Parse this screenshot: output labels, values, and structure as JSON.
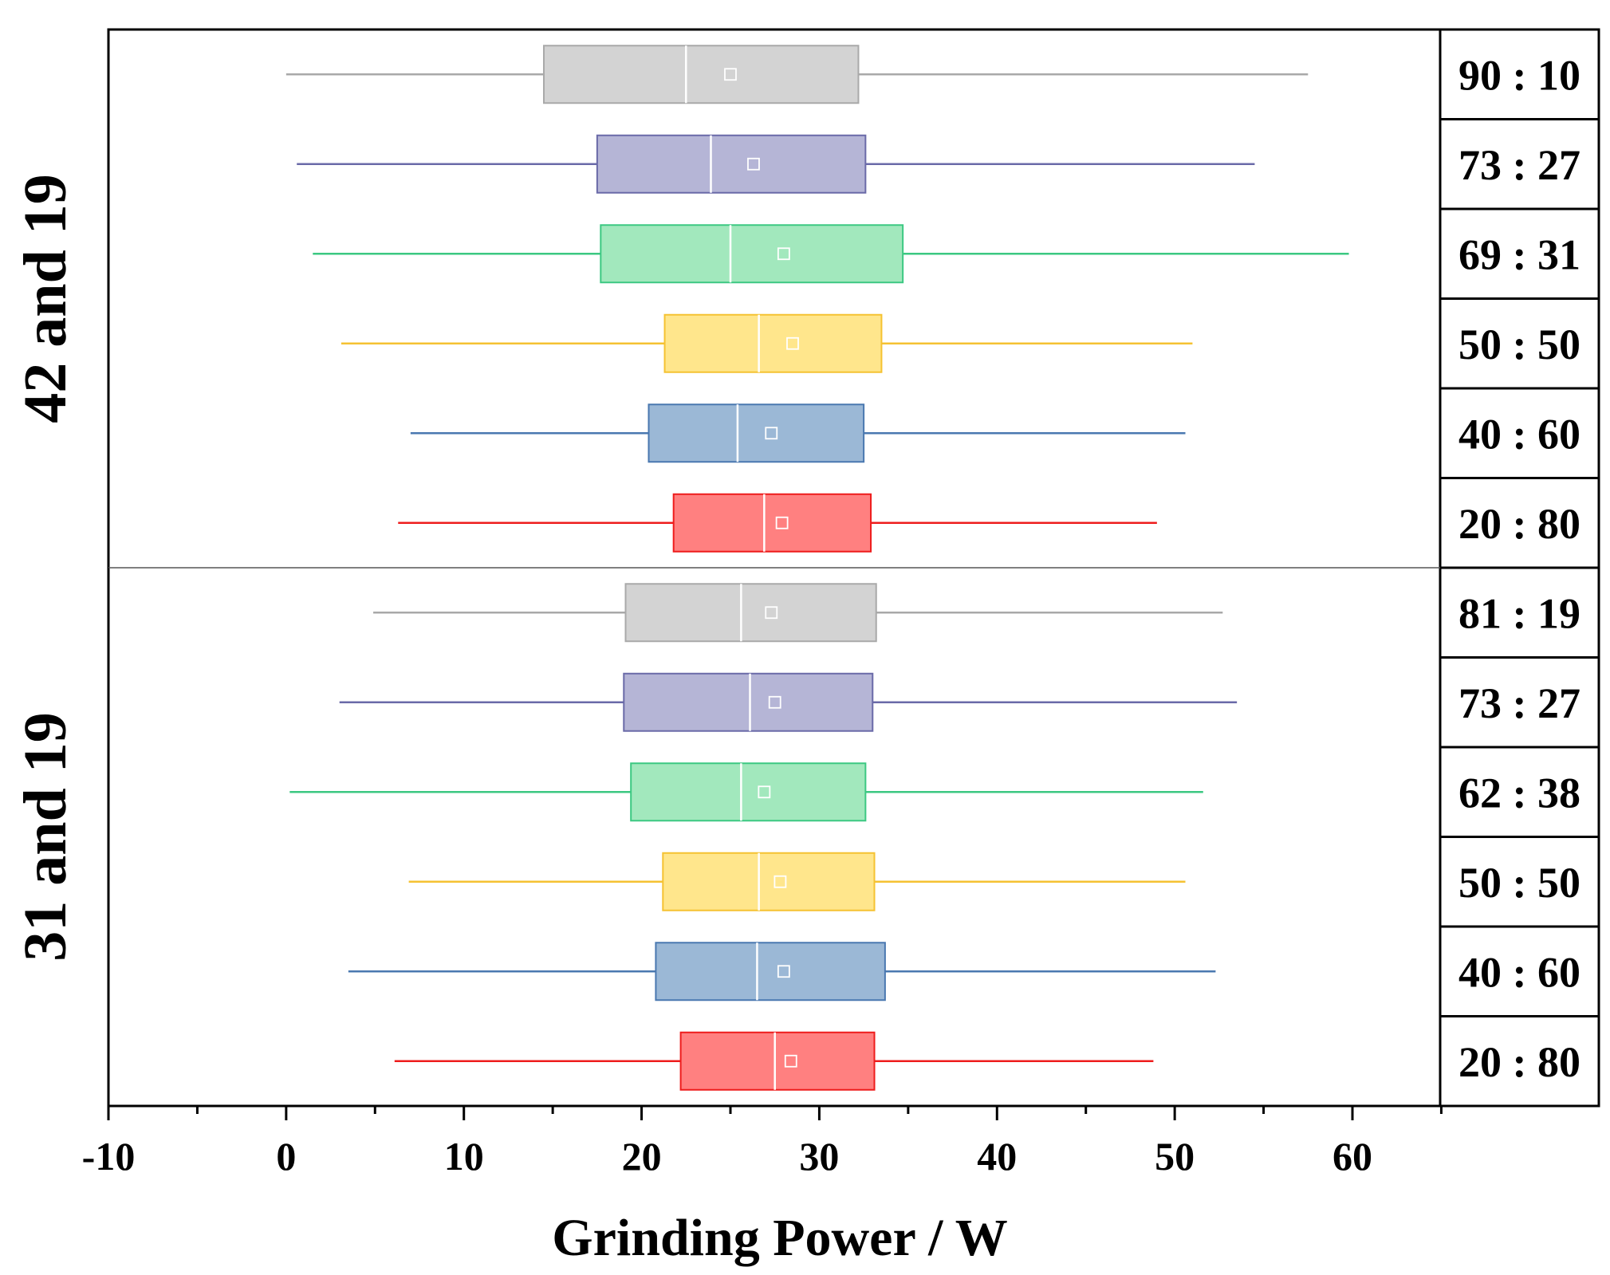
{
  "chart_data": {
    "type": "boxplot",
    "orientation": "horizontal",
    "xlabel": "Grinding Power / W",
    "xlim": [
      -10,
      65
    ],
    "xticks": [
      -10,
      0,
      10,
      20,
      30,
      40,
      50,
      60
    ],
    "tick_labels": [
      "-10",
      "0",
      "10",
      "20",
      "30",
      "40",
      "50",
      "60"
    ],
    "colors": {
      "gray": {
        "fill": "#d3d3d3",
        "stroke": "#a9a9a9"
      },
      "purple": {
        "fill": "#b5b5d6",
        "stroke": "#6a6aa8"
      },
      "green": {
        "fill": "#a2e8bd",
        "stroke": "#3cc882"
      },
      "yellow": {
        "fill": "#ffe68c",
        "stroke": "#f5c232"
      },
      "blue": {
        "fill": "#9bb8d6",
        "stroke": "#4a78b0"
      },
      "red": {
        "fill": "#ff8080",
        "stroke": "#ee1c1c"
      }
    },
    "groups": [
      {
        "label": "42 and 19",
        "boxes": [
          {
            "ratio": "90 : 10",
            "color": "gray",
            "min": 0,
            "q1": 14.5,
            "median": 22.5,
            "mean": 25.0,
            "q3": 32.2,
            "max": 57.5
          },
          {
            "ratio": "73 : 27",
            "color": "purple",
            "min": 0.6,
            "q1": 17.5,
            "median": 23.9,
            "mean": 26.3,
            "q3": 32.6,
            "max": 54.5
          },
          {
            "ratio": "69 : 31",
            "color": "green",
            "min": 1.5,
            "q1": 17.7,
            "median": 25.0,
            "mean": 28.0,
            "q3": 34.7,
            "max": 59.8
          },
          {
            "ratio": "50 : 50",
            "color": "yellow",
            "min": 3.1,
            "q1": 21.3,
            "median": 26.6,
            "mean": 28.5,
            "q3": 33.5,
            "max": 51.0
          },
          {
            "ratio": "40 : 60",
            "color": "blue",
            "min": 7.0,
            "q1": 20.4,
            "median": 25.4,
            "mean": 27.3,
            "q3": 32.5,
            "max": 50.6
          },
          {
            "ratio": "20 : 80",
            "color": "red",
            "min": 6.3,
            "q1": 21.8,
            "median": 26.9,
            "mean": 27.9,
            "q3": 32.9,
            "max": 49.0
          }
        ]
      },
      {
        "label": "31 and 19",
        "boxes": [
          {
            "ratio": "81 : 19",
            "color": "gray",
            "min": 4.9,
            "q1": 19.1,
            "median": 25.6,
            "mean": 27.3,
            "q3": 33.2,
            "max": 52.7
          },
          {
            "ratio": "73 : 27",
            "color": "purple",
            "min": 3.0,
            "q1": 19.0,
            "median": 26.1,
            "mean": 27.5,
            "q3": 33.0,
            "max": 53.5
          },
          {
            "ratio": "62 : 38",
            "color": "green",
            "min": 0.2,
            "q1": 19.4,
            "median": 25.6,
            "mean": 26.9,
            "q3": 32.6,
            "max": 51.6
          },
          {
            "ratio": "50 : 50",
            "color": "yellow",
            "min": 6.9,
            "q1": 21.2,
            "median": 26.6,
            "mean": 27.8,
            "q3": 33.1,
            "max": 50.6
          },
          {
            "ratio": "40 : 60",
            "color": "blue",
            "min": 3.5,
            "q1": 20.8,
            "median": 26.5,
            "mean": 28.0,
            "q3": 33.7,
            "max": 52.3
          },
          {
            "ratio": "20 : 80",
            "color": "red",
            "min": 6.1,
            "q1": 22.2,
            "median": 27.5,
            "mean": 28.4,
            "q3": 33.1,
            "max": 48.8
          }
        ]
      }
    ]
  }
}
